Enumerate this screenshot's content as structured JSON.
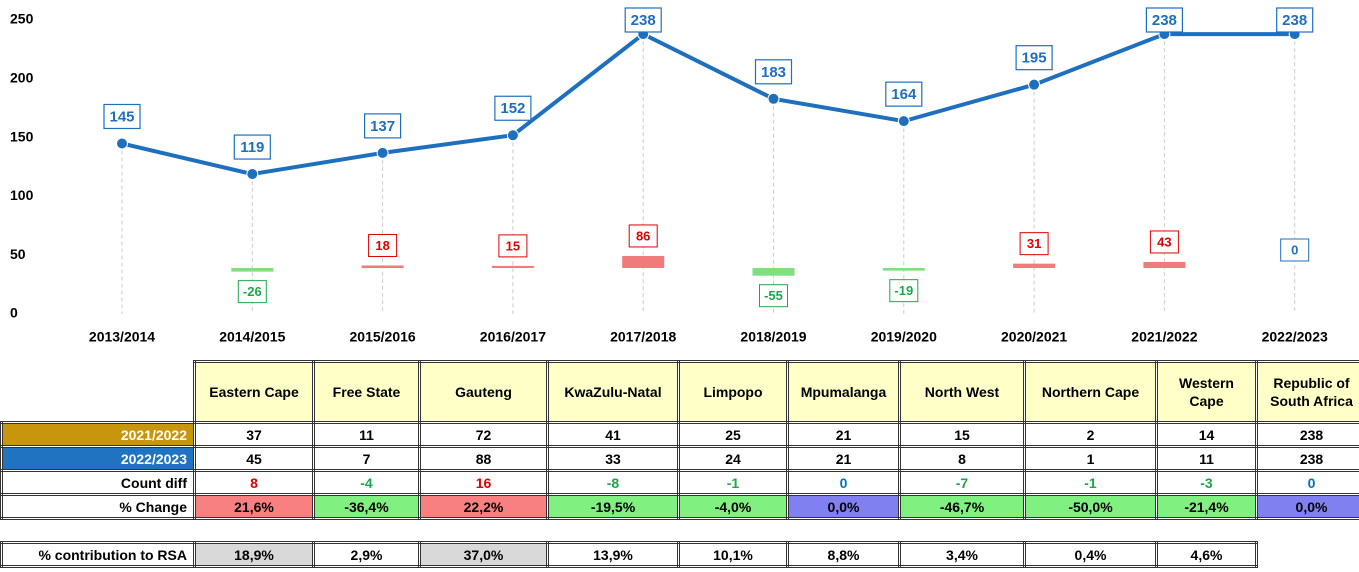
{
  "chart_data": {
    "type": "line",
    "categories": [
      "2013/2014",
      "2014/2015",
      "2015/2016",
      "2016/2017",
      "2017/2018",
      "2018/2019",
      "2019/2020",
      "2020/2021",
      "2021/2022",
      "2022/2023"
    ],
    "series": [
      {
        "color": "#1f6fbf",
        "values": [
          145,
          119,
          137,
          152,
          238,
          183,
          164,
          195,
          238,
          238
        ]
      }
    ],
    "differences": {
      "values": [
        null,
        -26,
        18,
        15,
        86,
        -55,
        -19,
        31,
        43,
        0
      ],
      "up_color": "#f07b7b",
      "up_text": "#e00000",
      "down_color": "#7ee07e",
      "down_text": "#1aa84a",
      "zero_text": "#1f6fbf"
    },
    "ylim": [
      0,
      250
    ],
    "yticks": [
      0,
      50,
      100,
      150,
      200,
      250
    ],
    "grid": false
  },
  "table": {
    "columns": [
      "Eastern Cape",
      "Free State",
      "Gauteng",
      "KwaZulu-Natal",
      "Limpopo",
      "Mpumalanga",
      "North West",
      "Northern Cape",
      "Western Cape",
      "Republic of South Africa"
    ],
    "header_fill": "#ffffc8",
    "rows": [
      {
        "label": "2021/2022",
        "label_fill": "#c8960c",
        "cells": [
          37,
          11,
          72,
          41,
          25,
          21,
          15,
          2,
          14,
          238
        ]
      },
      {
        "label": "2022/2023",
        "label_fill": "#1f73c0",
        "cells": [
          45,
          7,
          88,
          33,
          24,
          21,
          8,
          1,
          11,
          238
        ]
      },
      {
        "label": "Count diff",
        "cells": [
          8,
          -4,
          16,
          -8,
          -1,
          0,
          -7,
          -1,
          -3,
          0
        ],
        "text_colors": [
          "#e00000",
          "#1aa84a",
          "#e00000",
          "#1aa84a",
          "#1aa84a",
          "#0070c0",
          "#1aa84a",
          "#1aa84a",
          "#1aa84a",
          "#0070c0"
        ]
      },
      {
        "label": "% Change",
        "cells": [
          "21,6%",
          "-36,4%",
          "22,2%",
          "-19,5%",
          "-4,0%",
          "0,0%",
          "-46,7%",
          "-50,0%",
          "-21,4%",
          "0,0%"
        ],
        "fills": [
          "#f88080",
          "#80f080",
          "#f88080",
          "#80f080",
          "#80f080",
          "#8080f0",
          "#80f080",
          "#80f080",
          "#80f080",
          "#8080f0"
        ]
      }
    ],
    "contribution": {
      "label": "% contribution to RSA",
      "cells": [
        "18,9%",
        "2,9%",
        "37,0%",
        "13,9%",
        "10,1%",
        "8,8%",
        "3,4%",
        "0,4%",
        "4,6%"
      ],
      "fills": [
        "#d9d9d9",
        "#ffffff",
        "#d9d9d9",
        "#ffffff",
        "#ffffff",
        "#ffffff",
        "#ffffff",
        "#ffffff",
        "#ffffff"
      ]
    }
  }
}
